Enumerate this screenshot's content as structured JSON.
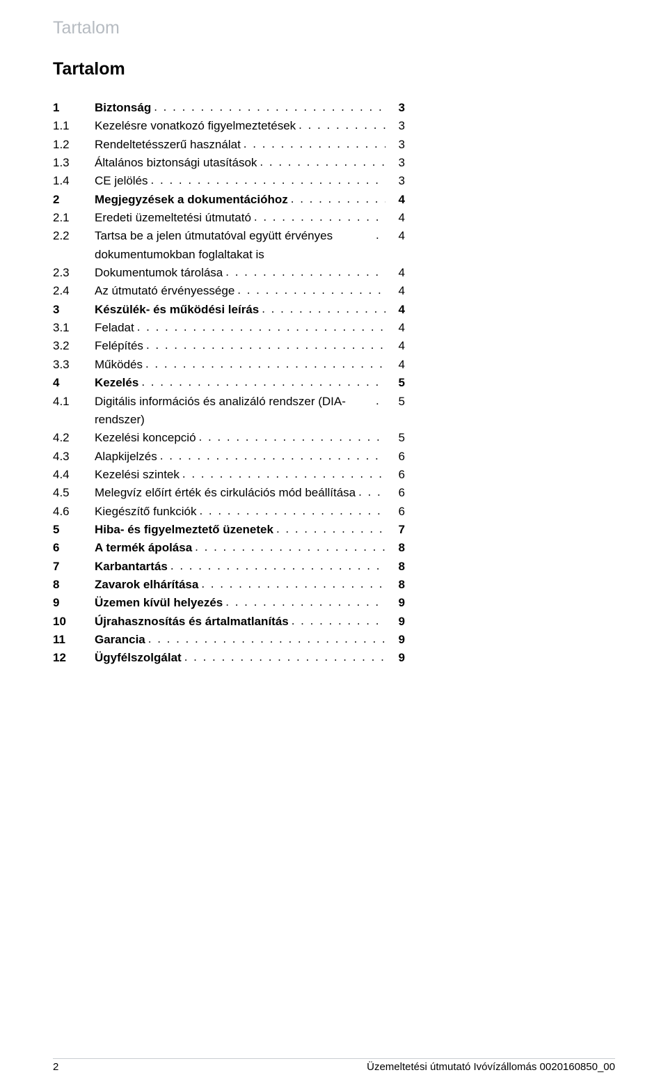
{
  "header": {
    "greyTitle": "Tartalom"
  },
  "heading": "Tartalom",
  "toc": [
    {
      "num": "1",
      "title": "Biztonság",
      "page": "3",
      "bold": true
    },
    {
      "num": "1.1",
      "title": "Kezelésre vonatkozó figyelmeztetések",
      "page": "3",
      "bold": false
    },
    {
      "num": "1.2",
      "title": "Rendeltetésszerű használat",
      "page": "3",
      "bold": false
    },
    {
      "num": "1.3",
      "title": "Általános biztonsági utasítások",
      "page": "3",
      "bold": false
    },
    {
      "num": "1.4",
      "title": "CE jelölés",
      "page": "3",
      "bold": false
    },
    {
      "num": "2",
      "title": "Megjegyzések a dokumentációhoz",
      "page": "4",
      "bold": true
    },
    {
      "num": "2.1",
      "title": "Eredeti üzemeltetési útmutató",
      "page": "4",
      "bold": false
    },
    {
      "num": "2.2",
      "title": "Tartsa be a jelen útmutatóval együtt érvényes dokumentumokban foglaltakat is",
      "page": "4",
      "bold": false,
      "multi": true
    },
    {
      "num": "2.3",
      "title": "Dokumentumok tárolása",
      "page": "4",
      "bold": false
    },
    {
      "num": "2.4",
      "title": "Az útmutató érvényessége",
      "page": "4",
      "bold": false
    },
    {
      "num": "3",
      "title": "Készülék- és működési leírás",
      "page": "4",
      "bold": true
    },
    {
      "num": "3.1",
      "title": "Feladat",
      "page": "4",
      "bold": false
    },
    {
      "num": "3.2",
      "title": "Felépítés",
      "page": "4",
      "bold": false
    },
    {
      "num": "3.3",
      "title": "Működés",
      "page": "4",
      "bold": false
    },
    {
      "num": "4",
      "title": "Kezelés",
      "page": "5",
      "bold": true
    },
    {
      "num": "4.1",
      "title": "Digitális információs és analizáló rendszer (DIA-rendszer)",
      "page": "5",
      "bold": false,
      "multi": true
    },
    {
      "num": "4.2",
      "title": "Kezelési koncepció",
      "page": "5",
      "bold": false
    },
    {
      "num": "4.3",
      "title": "Alapkijelzés",
      "page": "6",
      "bold": false
    },
    {
      "num": "4.4",
      "title": "Kezelési szintek",
      "page": "6",
      "bold": false
    },
    {
      "num": "4.5",
      "title": "Melegvíz előírt érték és cirkulációs mód beállítása",
      "page": "6",
      "bold": false,
      "multi": true
    },
    {
      "num": "4.6",
      "title": "Kiegészítő funkciók",
      "page": "6",
      "bold": false
    },
    {
      "num": "5",
      "title": "Hiba- és figyelmeztető üzenetek",
      "page": "7",
      "bold": true
    },
    {
      "num": "6",
      "title": "A termék ápolása",
      "page": "8",
      "bold": true
    },
    {
      "num": "7",
      "title": "Karbantartás",
      "page": "8",
      "bold": true
    },
    {
      "num": "8",
      "title": "Zavarok elhárítása",
      "page": "8",
      "bold": true
    },
    {
      "num": "9",
      "title": "Üzemen kívül helyezés",
      "page": "9",
      "bold": true
    },
    {
      "num": "10",
      "title": "Újrahasznosítás és ártalmatlanítás",
      "page": "9",
      "bold": true
    },
    {
      "num": "11",
      "title": "Garancia",
      "page": "9",
      "bold": true
    },
    {
      "num": "12",
      "title": "Ügyfélszolgálat",
      "page": "9",
      "bold": true
    }
  ],
  "footer": {
    "pageNum": "2",
    "right": "Üzemeltetési útmutató  Ivóvízállomás 0020160850_00"
  },
  "colors": {
    "greyHeader": "#b6bbc1",
    "text": "#000000",
    "background": "#ffffff",
    "footerRule": "#c9cdd2"
  },
  "fontSizes": {
    "header": 25,
    "heading": 25,
    "toc": 17,
    "footer": 15
  }
}
